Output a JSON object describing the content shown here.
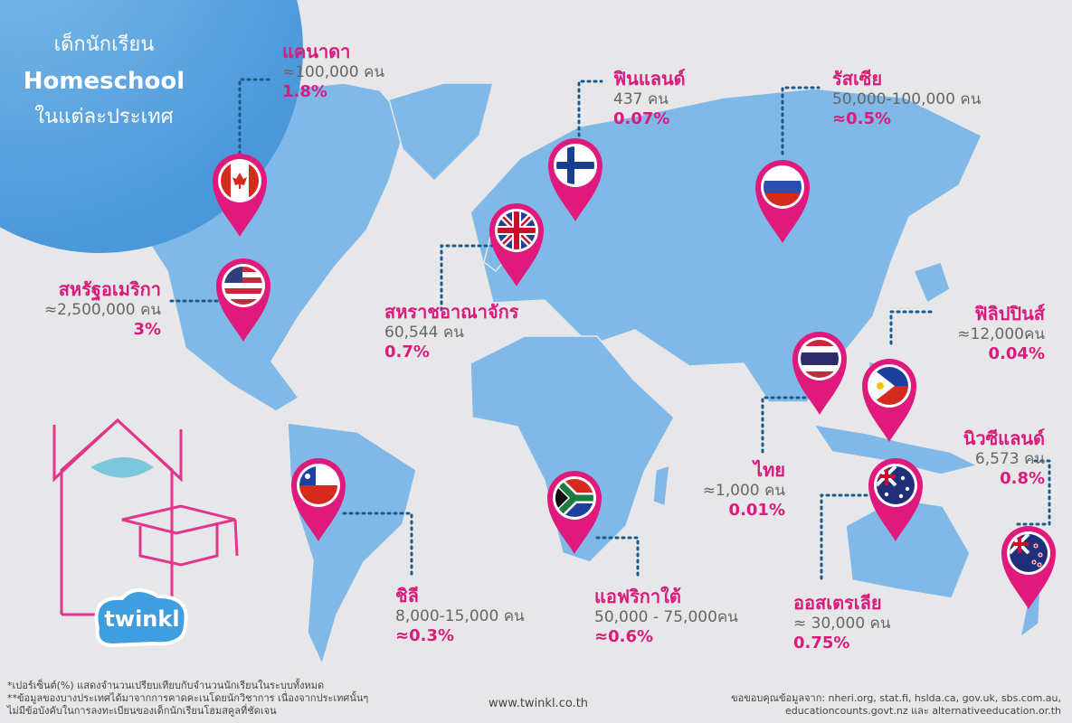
{
  "header": {
    "line1": "เด็กนักเรียน",
    "line2": "Homeschool",
    "line3": "ในแต่ละประเทศ"
  },
  "countries": [
    {
      "name": "แคนาดา",
      "count": "≈100,000 คน",
      "percent": "1.8%"
    },
    {
      "name": "ฟินแลนด์",
      "count": "437 คน",
      "percent": "0.07%"
    },
    {
      "name": "รัสเซีย",
      "count": "50,000-100,000 คน",
      "percent": "≈0.5%"
    },
    {
      "name": "สหรัฐอเมริกา",
      "count": "≈2,500,000 คน",
      "percent": "3%"
    },
    {
      "name": "สหราชอาณาจักร",
      "count": "60,544 คน",
      "percent": "0.7%"
    },
    {
      "name": "ฟิลิปปินส์",
      "count": "≈12,000คน",
      "percent": "0.04%"
    },
    {
      "name": "ไทย",
      "count": "≈1,000 คน",
      "percent": "0.01%"
    },
    {
      "name": "นิวซีแลนด์",
      "count": "6,573 คน",
      "percent": "0.8%"
    },
    {
      "name": "ชิลี",
      "count": "8,000-15,000 คน",
      "percent": "≈0.3%"
    },
    {
      "name": "แอฟริกาใต้",
      "count": "50,000 - 75,000คน",
      "percent": "≈0.6%"
    },
    {
      "name": "ออสเตรเลีย",
      "count": "≈ 30,000 คน",
      "percent": "0.75%"
    }
  ],
  "logo": "twinkl",
  "footnotes": [
    "*เปอร์เซ็นต์(%) แสดงจำนวนเปรียบเทียบกับจำนวนนักเรียนในระบบทั้งหมด",
    "**ข้อมูลของบางประเทศได้มาจากการคาดคะเนโดยนักวิชาการ เนื่องจากประเทศนั้นๆ ไม่มีข้อบังคับในการลงทะเบียนของเด็กนักเรียนโฮมสคูลที่ชัดเจน"
  ],
  "website": "www.twinkl.co.th",
  "credits": [
    "ขอขอบคุณข้อมูลจาก: nheri.org, stat.fi, hslda.ca, gov.uk, sbs.com.au,",
    "educationcounts.govt.nz และ alternativeeducation.or.th"
  ]
}
